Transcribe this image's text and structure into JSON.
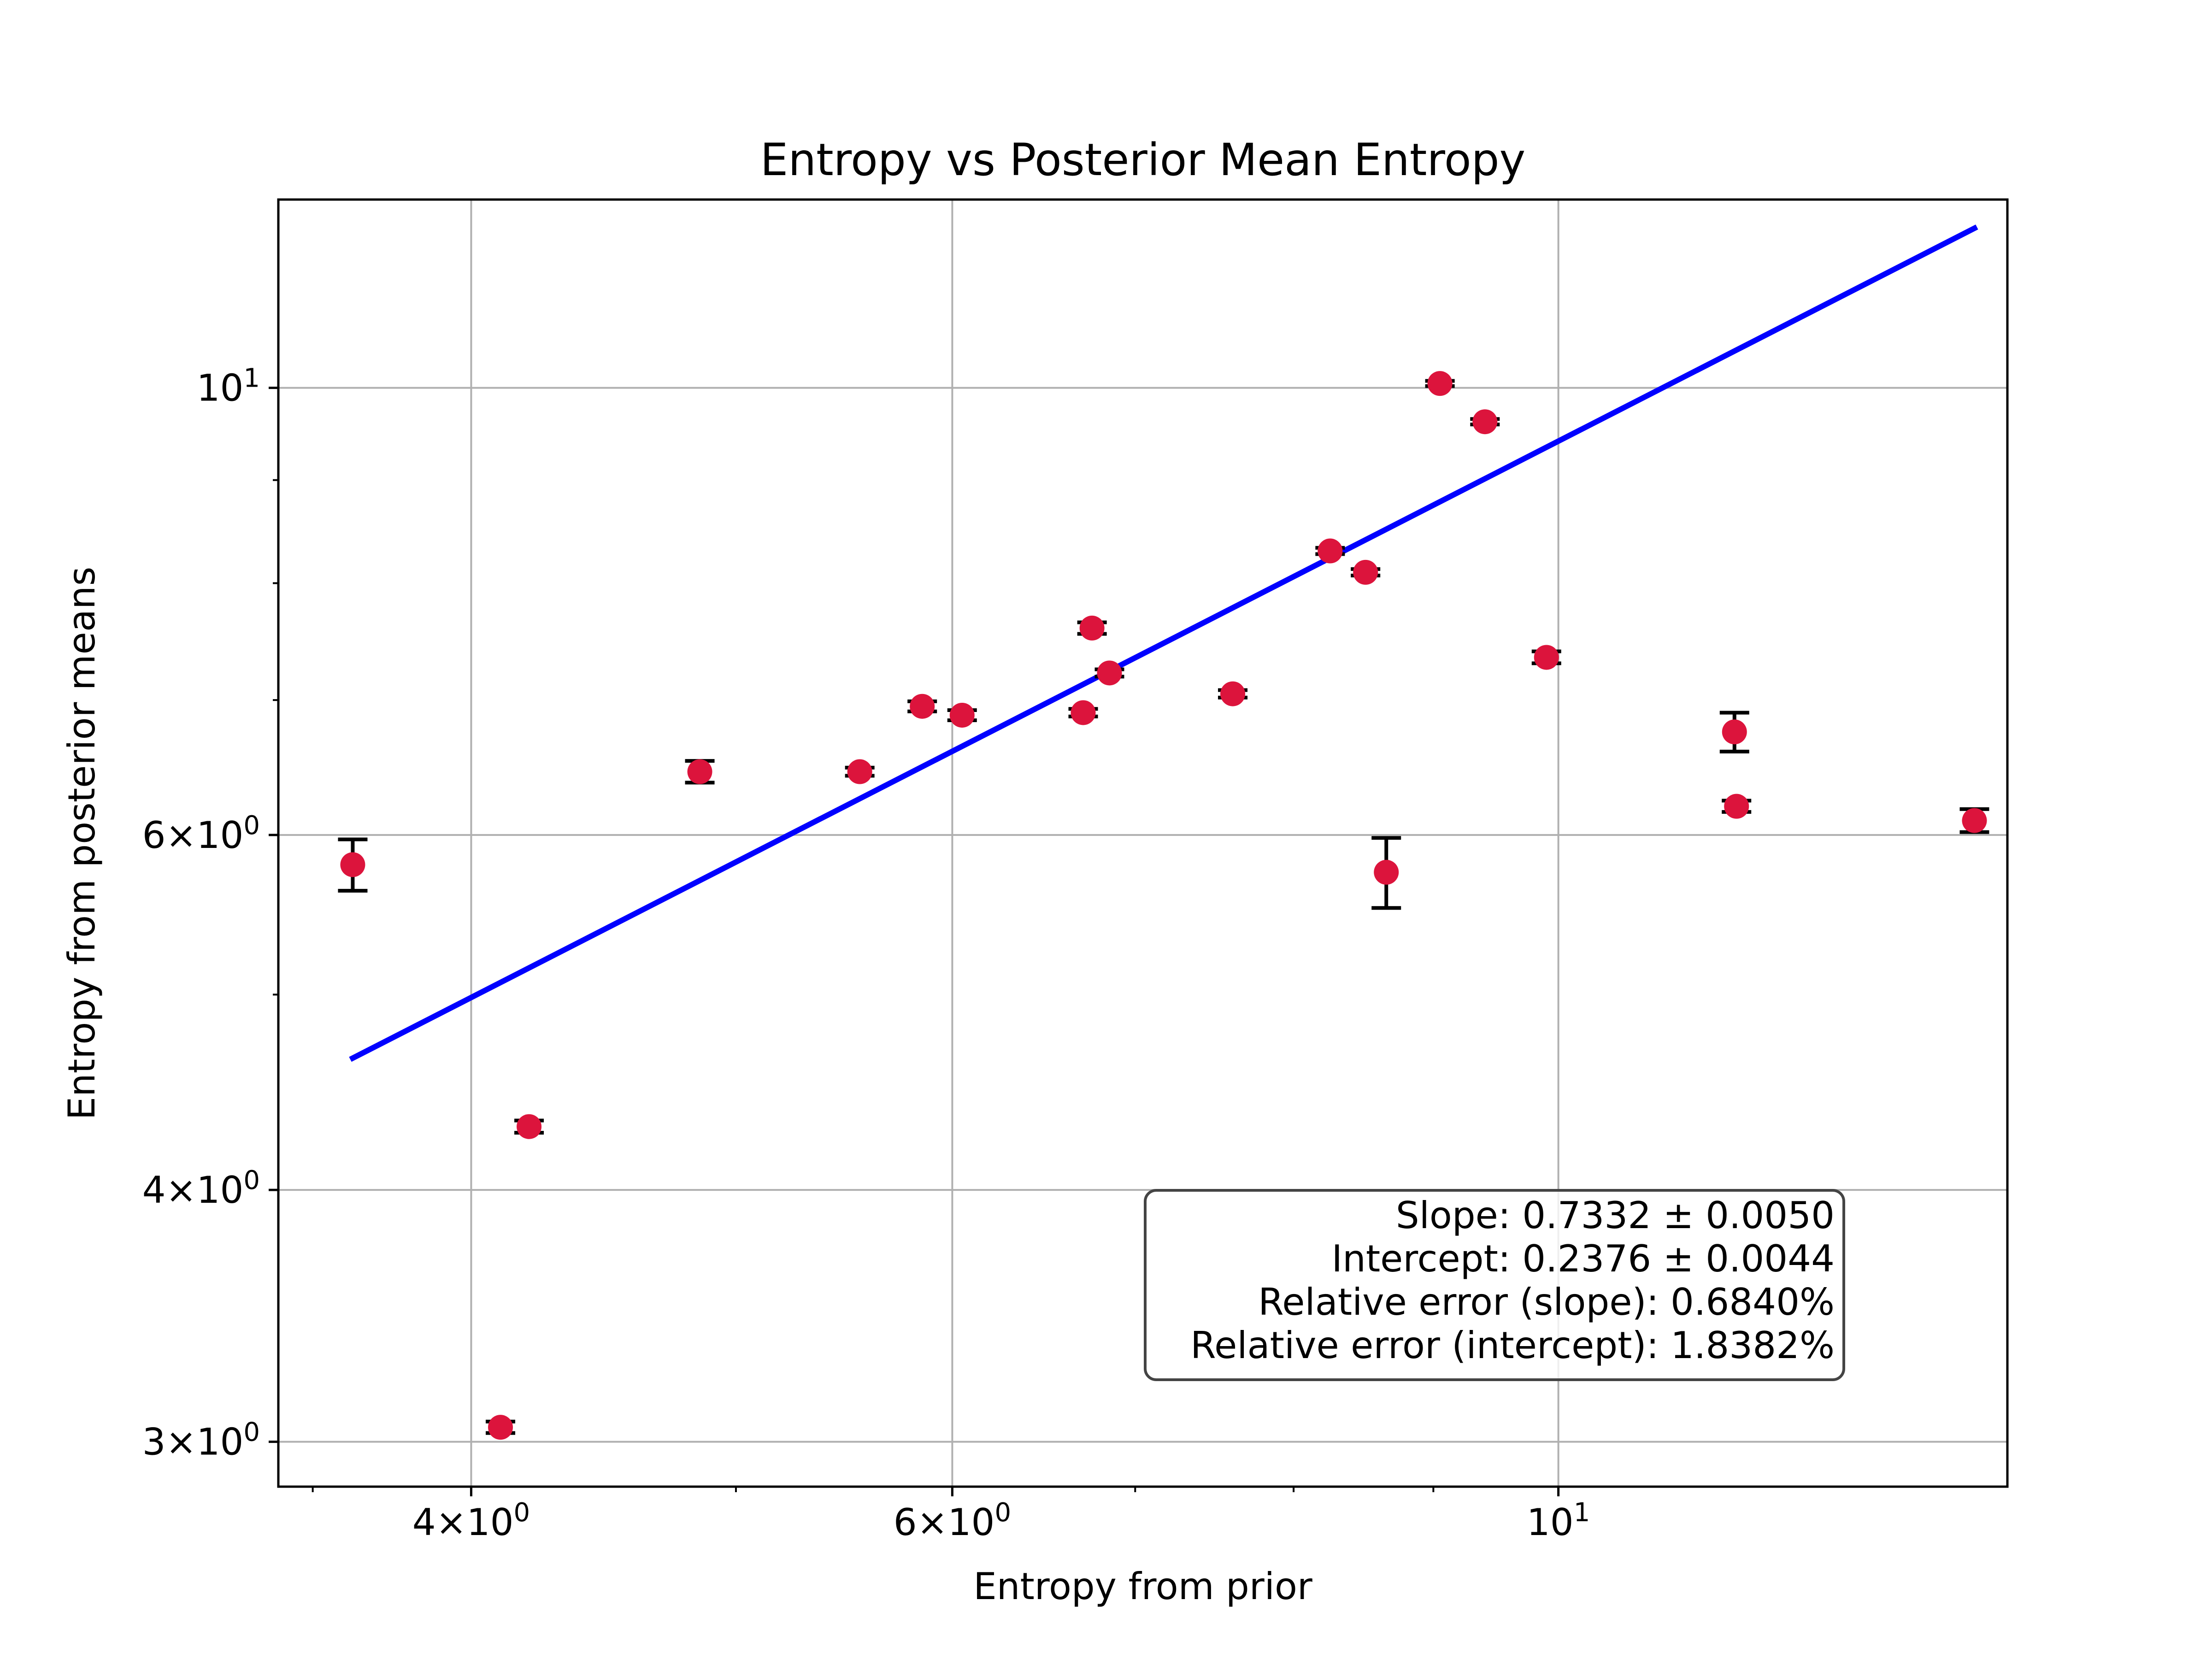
{
  "chart_data": {
    "type": "scatter",
    "title": "Entropy vs Posterior Mean Entropy",
    "xlabel": "Entropy from prior",
    "ylabel": "Entropy from posterior means",
    "xscale": "log",
    "yscale": "log",
    "xlim": [
      3.4,
      14.6
    ],
    "ylim": [
      2.85,
      12.4
    ],
    "grid": "major only",
    "x_ticks": [
      {
        "value": 4,
        "mantissa": "4",
        "exponent": "0"
      },
      {
        "value": 6,
        "mantissa": "6",
        "exponent": "0"
      },
      {
        "value": 10,
        "mantissa": "10",
        "exponent": "1"
      }
    ],
    "y_ticks": [
      {
        "value": 3,
        "mantissa": "3",
        "exponent": "0"
      },
      {
        "value": 4,
        "mantissa": "4",
        "exponent": "0"
      },
      {
        "value": 6,
        "mantissa": "6",
        "exponent": "0"
      },
      {
        "value": 10,
        "mantissa": "10",
        "exponent": "1"
      }
    ],
    "x_minor_ticks": [
      3.5,
      5,
      7,
      8,
      9,
      20
    ],
    "y_minor_ticks": [
      5,
      7,
      8,
      9
    ],
    "points": [
      {
        "x": 3.62,
        "y": 5.8,
        "yerr": 0.17
      },
      {
        "x": 4.1,
        "y": 3.05,
        "yerr": 0.02
      },
      {
        "x": 4.2,
        "y": 4.3,
        "yerr": 0.03
      },
      {
        "x": 4.85,
        "y": 6.45,
        "yerr": 0.08
      },
      {
        "x": 5.55,
        "y": 6.45,
        "yerr": 0.03
      },
      {
        "x": 5.85,
        "y": 6.95,
        "yerr": 0.04
      },
      {
        "x": 6.05,
        "y": 6.88,
        "yerr": 0.04
      },
      {
        "x": 6.7,
        "y": 6.9,
        "yerr": 0.03
      },
      {
        "x": 6.75,
        "y": 7.6,
        "yerr": 0.05
      },
      {
        "x": 6.85,
        "y": 7.22,
        "yerr": 0.03
      },
      {
        "x": 7.6,
        "y": 7.05,
        "yerr": 0.03
      },
      {
        "x": 8.25,
        "y": 8.3,
        "yerr": 0.03
      },
      {
        "x": 8.5,
        "y": 8.1,
        "yerr": 0.03
      },
      {
        "x": 8.65,
        "y": 5.75,
        "yerr": 0.23
      },
      {
        "x": 9.05,
        "y": 10.05,
        "yerr": 0.03
      },
      {
        "x": 9.4,
        "y": 9.62,
        "yerr": 0.03
      },
      {
        "x": 9.9,
        "y": 7.35,
        "yerr": 0.05
      },
      {
        "x": 11.6,
        "y": 6.75,
        "yerr": 0.15
      },
      {
        "x": 11.62,
        "y": 6.2,
        "yerr": 0.04
      },
      {
        "x": 14.2,
        "y": 6.1,
        "yerr": 0.08
      }
    ],
    "fit_line": {
      "x": [
        3.62,
        14.2
      ],
      "y": [
        4.65,
        12.0
      ]
    },
    "colors": {
      "points": "#dc143c",
      "errorbars": "#000000",
      "fit_line": "#0000ff",
      "grid": "#b0b0b0"
    },
    "annotation": {
      "placement": "lower-right",
      "lines": [
        "Slope: 0.7332 ± 0.0050",
        "Intercept: 0.2376 ± 0.0044",
        "Relative error (slope): 0.6840%",
        "Relative error (intercept): 1.8382%"
      ]
    }
  }
}
